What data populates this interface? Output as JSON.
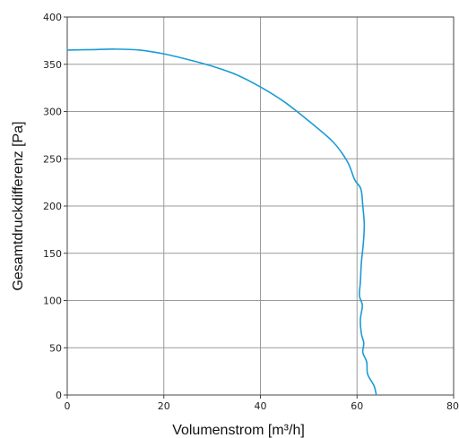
{
  "chart_data": {
    "type": "line",
    "xlabel": "Volumenstrom [m³/h]",
    "ylabel": "Gesamtdruckdifferenz [Pa]",
    "xlim": [
      0,
      80
    ],
    "ylim": [
      0,
      400
    ],
    "x_ticks": [
      0,
      20,
      40,
      60,
      80
    ],
    "y_ticks": [
      0,
      50,
      100,
      150,
      200,
      250,
      300,
      350,
      400
    ],
    "x_tick_labels": [
      "0",
      "20",
      "40",
      "60",
      "80"
    ],
    "y_tick_labels": [
      "0",
      "50",
      "100",
      "150",
      "200",
      "250",
      "300",
      "350",
      "400"
    ],
    "grid": true,
    "series": [
      {
        "color": "#1a9bd7",
        "points": [
          [
            0,
            365
          ],
          [
            5,
            365.5
          ],
          [
            10,
            366
          ],
          [
            15,
            365
          ],
          [
            20,
            361
          ],
          [
            25,
            355
          ],
          [
            30,
            348
          ],
          [
            35,
            339
          ],
          [
            40,
            326
          ],
          [
            45,
            310
          ],
          [
            50,
            290
          ],
          [
            55,
            268
          ],
          [
            58,
            247
          ],
          [
            59.5,
            228
          ],
          [
            60.8,
            218
          ],
          [
            61.2,
            200
          ],
          [
            61.5,
            180
          ],
          [
            61.3,
            160
          ],
          [
            60.9,
            140
          ],
          [
            60.7,
            120
          ],
          [
            60.5,
            105
          ],
          [
            61.1,
            95
          ],
          [
            60.7,
            80
          ],
          [
            60.9,
            65
          ],
          [
            61.4,
            55
          ],
          [
            61.2,
            45
          ],
          [
            62.0,
            35
          ],
          [
            62.2,
            22
          ],
          [
            63.5,
            10
          ],
          [
            64.0,
            0
          ]
        ]
      }
    ]
  }
}
